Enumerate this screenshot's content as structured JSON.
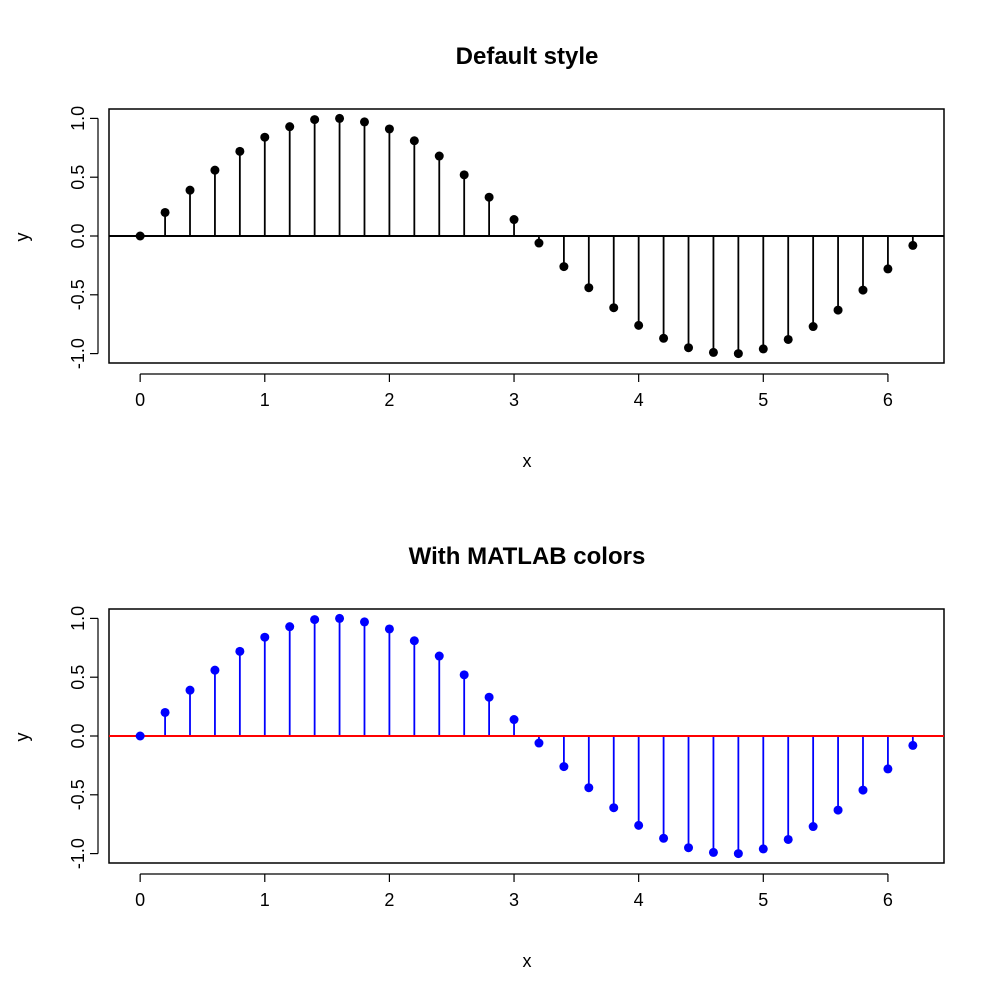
{
  "chart_data": [
    {
      "type": "stem",
      "title": "Default style",
      "xlabel": "x",
      "ylabel": "y",
      "xlim": [
        -0.25,
        6.45
      ],
      "ylim": [
        -1.08,
        1.08
      ],
      "xticks": [
        "0",
        "1",
        "2",
        "3",
        "4",
        "5",
        "6"
      ],
      "yticks": [
        "-1.0",
        "-0.5",
        "0.0",
        "0.5",
        "1.0"
      ],
      "baseline": 0,
      "colors": {
        "stem": "#000000",
        "marker": "#000000",
        "baseline": "#000000"
      },
      "x": [
        0,
        0.2,
        0.4,
        0.6,
        0.8,
        1.0,
        1.2,
        1.4,
        1.6,
        1.8,
        2.0,
        2.2,
        2.4,
        2.6,
        2.8,
        3.0,
        3.2,
        3.4,
        3.6,
        3.8,
        4.0,
        4.2,
        4.4,
        4.6,
        4.8,
        5.0,
        5.2,
        5.4,
        5.6,
        5.8,
        6.0,
        6.2
      ],
      "y": [
        0.0,
        0.2,
        0.39,
        0.56,
        0.72,
        0.84,
        0.93,
        0.99,
        1.0,
        0.97,
        0.91,
        0.81,
        0.68,
        0.52,
        0.33,
        0.14,
        -0.06,
        -0.26,
        -0.44,
        -0.61,
        -0.76,
        -0.87,
        -0.95,
        -0.99,
        -1.0,
        -0.96,
        -0.88,
        -0.77,
        -0.63,
        -0.46,
        -0.28,
        -0.08
      ]
    },
    {
      "type": "stem",
      "title": "With MATLAB colors",
      "xlabel": "x",
      "ylabel": "y",
      "xlim": [
        -0.25,
        6.45
      ],
      "ylim": [
        -1.08,
        1.08
      ],
      "xticks": [
        "0",
        "1",
        "2",
        "3",
        "4",
        "5",
        "6"
      ],
      "yticks": [
        "-1.0",
        "-0.5",
        "0.0",
        "0.5",
        "1.0"
      ],
      "baseline": 0,
      "colors": {
        "stem": "#0000ff",
        "marker": "#0000ff",
        "baseline": "#ff0000"
      },
      "x": [
        0,
        0.2,
        0.4,
        0.6,
        0.8,
        1.0,
        1.2,
        1.4,
        1.6,
        1.8,
        2.0,
        2.2,
        2.4,
        2.6,
        2.8,
        3.0,
        3.2,
        3.4,
        3.6,
        3.8,
        4.0,
        4.2,
        4.4,
        4.6,
        4.8,
        5.0,
        5.2,
        5.4,
        5.6,
        5.8,
        6.0,
        6.2
      ],
      "y": [
        0.0,
        0.2,
        0.39,
        0.56,
        0.72,
        0.84,
        0.93,
        0.99,
        1.0,
        0.97,
        0.91,
        0.81,
        0.68,
        0.52,
        0.33,
        0.14,
        -0.06,
        -0.26,
        -0.44,
        -0.61,
        -0.76,
        -0.87,
        -0.95,
        -0.99,
        -1.0,
        -0.96,
        -0.88,
        -0.77,
        -0.63,
        -0.46,
        -0.28,
        -0.08
      ]
    }
  ]
}
